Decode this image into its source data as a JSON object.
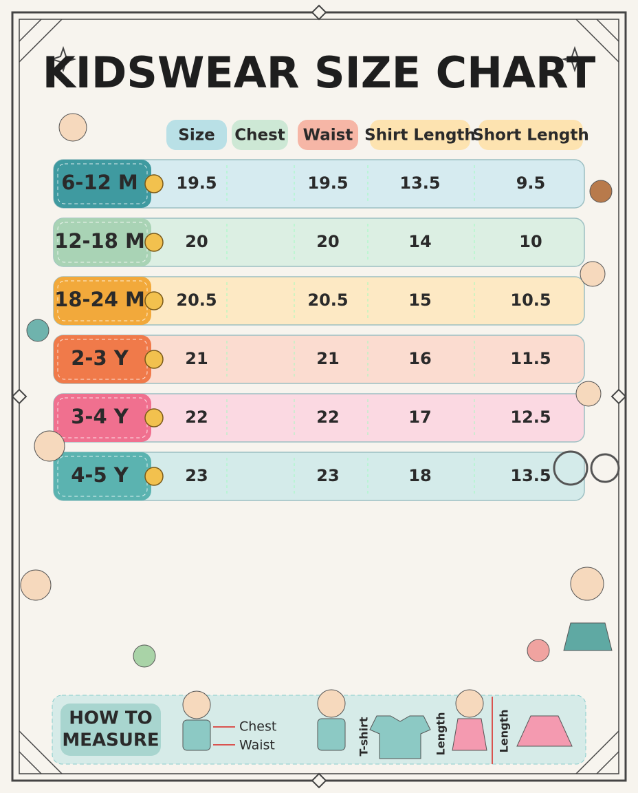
{
  "header": {
    "title": "KIDSWEAR SIZE CHART"
  },
  "table": {
    "columns": [
      "Size",
      "Chest",
      "Waist",
      "Shirt Length",
      "Short Length"
    ],
    "rows": [
      {
        "label": "6-12 M",
        "values": [
          19.5,
          null,
          19.5,
          13.5,
          9.5
        ]
      },
      {
        "label": "12-18 M",
        "values": [
          20,
          null,
          20,
          14,
          10
        ]
      },
      {
        "label": "18-24 M",
        "values": [
          20.5,
          null,
          20.5,
          15,
          10.5
        ]
      },
      {
        "label": "2-3 Y",
        "values": [
          21,
          null,
          21,
          16,
          11.5
        ]
      },
      {
        "label": "3-4 Y",
        "values": [
          22,
          null,
          22,
          17,
          12.5
        ]
      },
      {
        "label": "4-5 Y",
        "values": [
          23,
          null,
          23,
          18,
          13.5
        ]
      }
    ]
  },
  "measure": {
    "title_line1": "HOW TO",
    "title_line2": "MEASURE",
    "chest": "Chest",
    "waist": "Waist",
    "tshirt": "T-shirt",
    "length_shirt": "Length",
    "length_skirt": "Length"
  }
}
